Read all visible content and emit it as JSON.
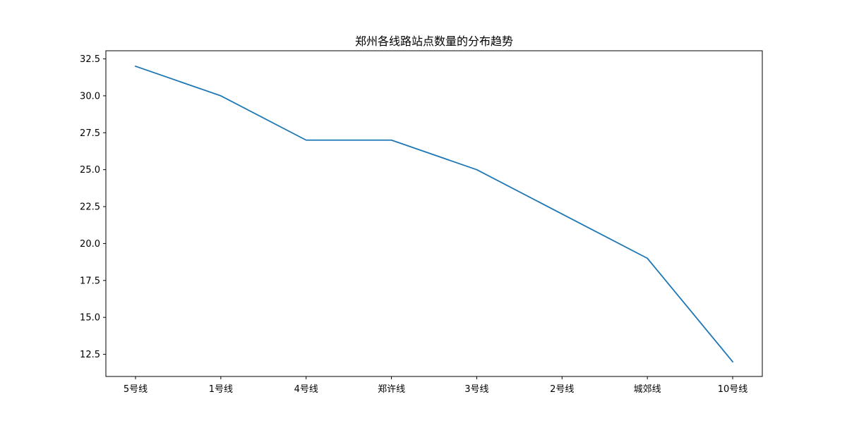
{
  "chart_data": {
    "type": "line",
    "title": "郑州各线路站点数量的分布趋势",
    "xlabel": "",
    "ylabel": "",
    "categories": [
      "5号线",
      "1号线",
      "4号线",
      "郑许线",
      "3号线",
      "2号线",
      "城郊线",
      "10号线"
    ],
    "series": [
      {
        "values": [
          32,
          30,
          27,
          27,
          25,
          22,
          19,
          12
        ],
        "color": "#1f77b4"
      }
    ],
    "ylim": [
      11.0,
      33.05
    ],
    "yticks": [
      "12.5",
      "15.0",
      "17.5",
      "20.0",
      "22.5",
      "25.0",
      "27.5",
      "30.0",
      "32.5"
    ],
    "grid": false,
    "legend": "none"
  }
}
